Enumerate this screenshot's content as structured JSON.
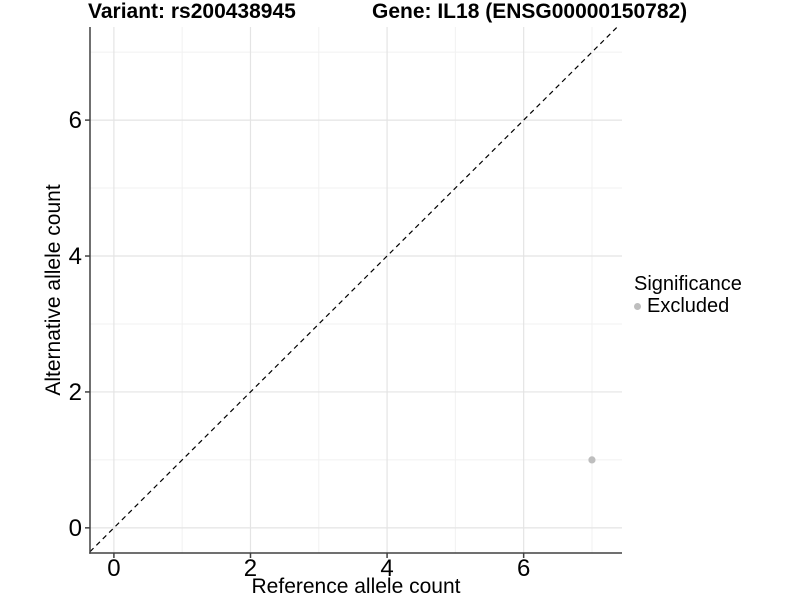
{
  "titles": {
    "variant": "Variant: rs200438945",
    "gene": "Gene: IL18 (ENSG00000150782)"
  },
  "legend": {
    "title": "Significance",
    "items": [
      {
        "label": "Excluded",
        "color": "#bebebe"
      }
    ],
    "position": "right"
  },
  "chart_data": {
    "type": "scatter",
    "title": "Variant: rs200438945   Gene: IL18 (ENSG00000150782)",
    "xlabel": "Reference allele count",
    "ylabel": "Alternative allele count",
    "xlim": [
      -0.35,
      7.44
    ],
    "ylim": [
      -0.37,
      7.37
    ],
    "x_major_ticks": [
      0,
      2,
      4,
      6
    ],
    "y_major_ticks": [
      0,
      2,
      4,
      6
    ],
    "x_minor_gridlines": [
      1,
      3,
      5,
      7
    ],
    "y_minor_gridlines": [
      1,
      3,
      5,
      7
    ],
    "grid": true,
    "legend_position": "right",
    "series": [
      {
        "name": "Excluded",
        "color": "#bebebe",
        "points": [
          {
            "x": 7,
            "y": 1
          }
        ]
      }
    ],
    "reference_line": {
      "kind": "identity",
      "slope": 1,
      "intercept": 0,
      "style": "dashed",
      "color": "#000000"
    },
    "colors": {
      "major_grid": "#e4e4e4",
      "minor_grid": "#f1f1f1",
      "axis_line": "#404040",
      "tick_mark": "#404040",
      "text": "#000000",
      "background": "#ffffff"
    }
  }
}
